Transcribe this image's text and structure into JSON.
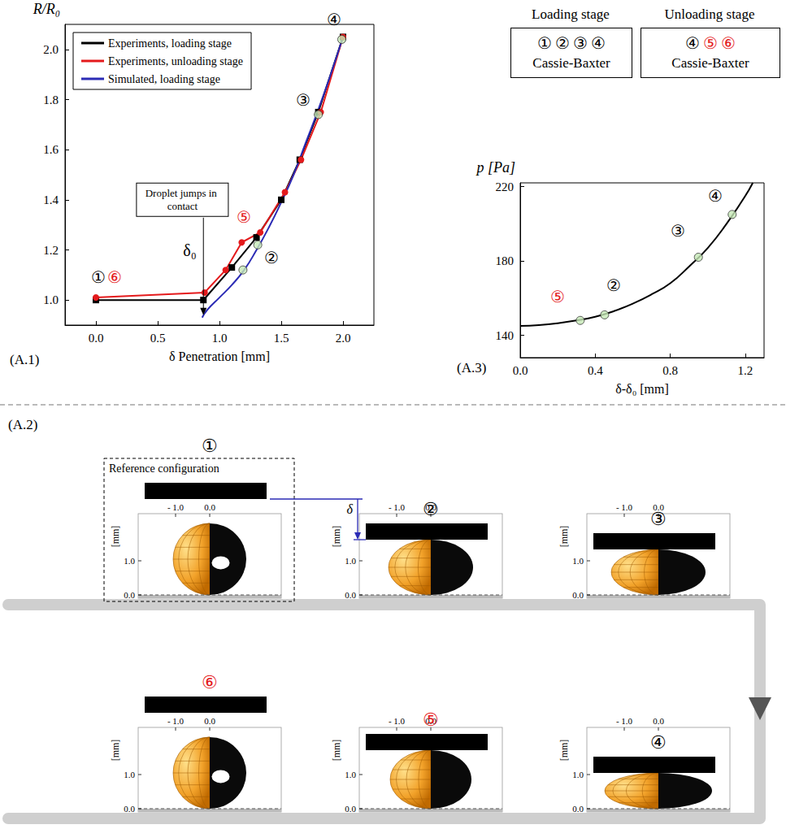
{
  "chart_data": [
    {
      "type": "line",
      "title": "(A.1)",
      "x_label": "δ Penetration [mm]",
      "y_label": "R/R₀",
      "xlim": [
        -0.25,
        2.25
      ],
      "xticks": [
        {
          "value": 0,
          "label": "0.0"
        },
        {
          "value": 0.5,
          "label": "0.5"
        },
        {
          "value": 1,
          "label": "1.0"
        },
        {
          "value": 1.5,
          "label": "1.5"
        },
        {
          "value": 2,
          "label": "2.0"
        }
      ],
      "ylim": [
        0.9,
        2.1
      ],
      "yticks": [
        {
          "value": 1,
          "label": "1.0"
        },
        {
          "value": 1.2,
          "label": "1.2"
        },
        {
          "value": 1.4,
          "label": "1.4"
        },
        {
          "value": 1.6,
          "label": "1.6"
        },
        {
          "value": 1.8,
          "label": "1.8"
        },
        {
          "value": 2,
          "label": "2.0"
        }
      ],
      "grid": false,
      "legend": "upper left",
      "series": [
        {
          "name": "Experiments, loading stage",
          "color": "#000000",
          "marker": "square",
          "line_style": "solid",
          "x": [
            0,
            0.87,
            1.1,
            1.3,
            1.5,
            1.65,
            1.8,
            2.0
          ],
          "values": [
            1.0,
            1.0,
            1.13,
            1.25,
            1.4,
            1.56,
            1.75,
            2.05
          ]
        },
        {
          "name": "Experiments, unloading stage",
          "color": "#e41a1c",
          "marker": "circle",
          "line_style": "solid",
          "x": [
            2.0,
            1.82,
            1.66,
            1.53,
            1.33,
            1.18,
            1.05,
            0.88,
            0
          ],
          "values": [
            2.05,
            1.75,
            1.56,
            1.43,
            1.27,
            1.23,
            1.12,
            1.03,
            1.01
          ]
        },
        {
          "name": "Simulated, loading stage",
          "color": "#2b2bb5",
          "marker": "none",
          "line_style": "solid",
          "x": [
            0.86,
            0.9,
            1.0,
            1.1,
            1.2,
            1.3,
            1.4,
            1.5,
            1.6,
            1.7,
            1.8,
            1.9,
            2.0
          ],
          "values": [
            0.93,
            0.96,
            1.01,
            1.06,
            1.12,
            1.2,
            1.29,
            1.39,
            1.5,
            1.63,
            1.76,
            1.9,
            2.05
          ]
        },
        {
          "type": "scatter",
          "color": "#c5e8b7",
          "marker": "circle",
          "x": [
            1.19,
            1.31,
            1.8,
            1.99
          ],
          "values": [
            1.12,
            1.22,
            1.74,
            2.04
          ]
        }
      ],
      "annotations": [
        {
          "text": "①",
          "x": 0.02,
          "y": 1.09,
          "color": "#000000"
        },
        {
          "text": "⑥",
          "x": 0.15,
          "y": 1.09,
          "color": "#e41a1c"
        },
        {
          "text": "⑤",
          "x": 1.2,
          "y": 1.33,
          "color": "#e41a1c"
        },
        {
          "text": "②",
          "x": 1.42,
          "y": 1.17,
          "color": "#000000"
        },
        {
          "text": "③",
          "x": 1.68,
          "y": 1.8,
          "color": "#000000"
        },
        {
          "text": "④",
          "x": 1.93,
          "y": 2.12,
          "color": "#000000"
        },
        {
          "text": "δ₀",
          "x": 0.76,
          "y": 1.2,
          "color": "#000000"
        }
      ],
      "callout": {
        "text": "Droplet jumps in contact",
        "x": 0.7,
        "y": 1.4,
        "target_x": 0.87,
        "target_y": 0.94
      }
    },
    {
      "type": "line",
      "title": "(A.3)",
      "x_label": "δ-δ₀ [mm]",
      "y_label": "p [Pa]",
      "xlim": [
        0,
        1.3
      ],
      "xticks": [
        {
          "value": 0,
          "label": "0.0"
        },
        {
          "value": 0.4,
          "label": "0.4"
        },
        {
          "value": 0.8,
          "label": "0.8"
        },
        {
          "value": 1.2,
          "label": "1.2"
        }
      ],
      "ylim": [
        128,
        222
      ],
      "yticks": [
        140,
        180,
        220
      ],
      "grid": false,
      "series": [
        {
          "color": "#000000",
          "marker": "none",
          "line_style": "solid",
          "x": [
            0,
            0.1,
            0.2,
            0.3,
            0.4,
            0.5,
            0.6,
            0.7,
            0.8,
            0.9,
            1.0,
            1.1,
            1.2,
            1.24
          ],
          "values": [
            145,
            145.5,
            146.5,
            148,
            150,
            153,
            157,
            162,
            168,
            177,
            187,
            200,
            215,
            222
          ]
        },
        {
          "type": "scatter",
          "color": "#c5e8b7",
          "marker": "circle",
          "x": [
            0.32,
            0.45,
            0.95,
            1.13
          ],
          "values": [
            148,
            151,
            182,
            205
          ]
        }
      ],
      "annotations": [
        {
          "text": "⑤",
          "x": 0.2,
          "y": 161,
          "color": "#e41a1c"
        },
        {
          "text": "②",
          "x": 0.5,
          "y": 167,
          "color": "#000000"
        },
        {
          "text": "③",
          "x": 0.84,
          "y": 196,
          "color": "#000000"
        },
        {
          "text": "④",
          "x": 1.04,
          "y": 215,
          "color": "#000000"
        }
      ]
    }
  ],
  "stages": [
    {
      "title": "Loading stage",
      "states": [
        {
          "label": "①",
          "color": "#000000"
        },
        {
          "label": "②",
          "color": "#000000"
        },
        {
          "label": "③",
          "color": "#000000"
        },
        {
          "label": "④",
          "color": "#000000"
        }
      ],
      "regime": "Cassie-Baxter"
    },
    {
      "title": "Unloading stage",
      "states": [
        {
          "label": "④",
          "color": "#000000"
        },
        {
          "label": "⑤",
          "color": "#e41a1c"
        },
        {
          "label": "⑥",
          "color": "#e41a1c"
        }
      ],
      "regime": "Cassie-Baxter"
    }
  ],
  "diagram": {
    "title": "(A.2)",
    "reference_label": "Reference configuration",
    "delta_label": "δ",
    "panel_axis": {
      "x_ticks": [
        "- 1.0",
        "0.0"
      ],
      "y_label": "[mm]",
      "y_ticks": [
        "1.0",
        "0.0"
      ]
    },
    "panels": [
      {
        "label": "①",
        "color": "#000000"
      },
      {
        "label": "②",
        "color": "#000000"
      },
      {
        "label": "③",
        "color": "#000000"
      },
      {
        "label": "④",
        "color": "#000000"
      },
      {
        "label": "⑤",
        "color": "#e41a1c"
      },
      {
        "label": "⑥",
        "color": "#e41a1c"
      }
    ]
  }
}
